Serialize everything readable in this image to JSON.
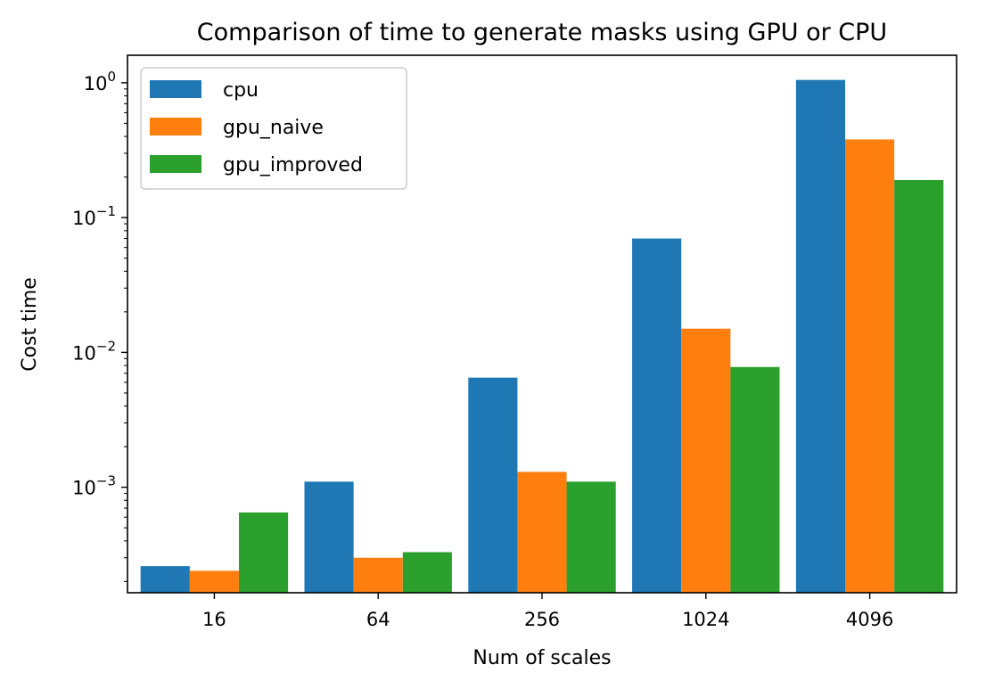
{
  "chart_data": {
    "type": "bar",
    "title": "Comparison of time to generate masks using GPU or CPU",
    "xlabel": "Num of scales",
    "ylabel": "Cost time",
    "yscale": "log",
    "ylim": [
      0.000165,
      1.6
    ],
    "yticks": [
      {
        "value": 0.001,
        "base": "10",
        "exp": "−3"
      },
      {
        "value": 0.01,
        "base": "10",
        "exp": "−2"
      },
      {
        "value": 0.1,
        "base": "10",
        "exp": "−1"
      },
      {
        "value": 1,
        "base": "10",
        "exp": "0"
      }
    ],
    "categories": [
      "16",
      "64",
      "256",
      "1024",
      "4096"
    ],
    "series": [
      {
        "name": "cpu",
        "color": "#1f77b4",
        "values": [
          0.00026,
          0.0011,
          0.0065,
          0.07,
          1.05
        ]
      },
      {
        "name": "gpu_naive",
        "color": "#ff7f0e",
        "values": [
          0.00024,
          0.0003,
          0.0013,
          0.015,
          0.38
        ]
      },
      {
        "name": "gpu_improved",
        "color": "#2ca02c",
        "values": [
          0.00065,
          0.00033,
          0.0011,
          0.0078,
          0.19
        ]
      }
    ],
    "legend_position": "top-left",
    "grid": false
  }
}
